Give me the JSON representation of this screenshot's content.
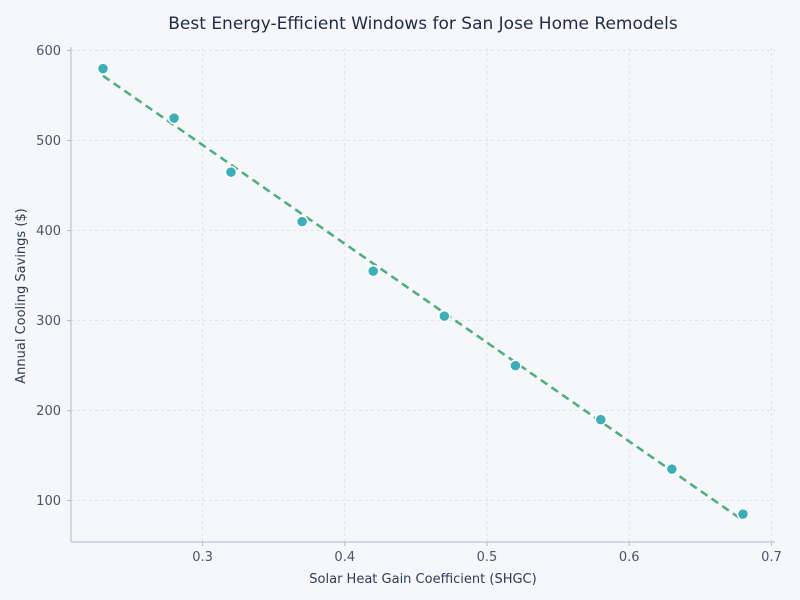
{
  "chart_data": {
    "type": "scatter",
    "title": "Best Energy-Efficient Windows for San Jose Home Remodels",
    "xlabel": "Solar Heat Gain Coefficient (SHGC)",
    "ylabel": "Annual Cooling Savings ($)",
    "xlim": [
      0.2075,
      0.7025
    ],
    "ylim": [
      54,
      604
    ],
    "xticks": [
      0.3,
      0.4,
      0.5,
      0.6,
      0.7
    ],
    "yticks": [
      100,
      200,
      300,
      400,
      500,
      600
    ],
    "grid": true,
    "points": [
      {
        "x": 0.23,
        "y": 580
      },
      {
        "x": 0.28,
        "y": 525
      },
      {
        "x": 0.32,
        "y": 465
      },
      {
        "x": 0.37,
        "y": 410
      },
      {
        "x": 0.42,
        "y": 355
      },
      {
        "x": 0.47,
        "y": 305
      },
      {
        "x": 0.52,
        "y": 250
      },
      {
        "x": 0.58,
        "y": 190
      },
      {
        "x": 0.63,
        "y": 135
      },
      {
        "x": 0.68,
        "y": 85
      }
    ],
    "trendline": {
      "style": "dashed",
      "from": {
        "x": 0.23,
        "y": 572
      },
      "to": {
        "x": 0.68,
        "y": 78
      }
    },
    "colors": {
      "point": "#3aafb9",
      "trendline": "#4caf7a"
    }
  }
}
